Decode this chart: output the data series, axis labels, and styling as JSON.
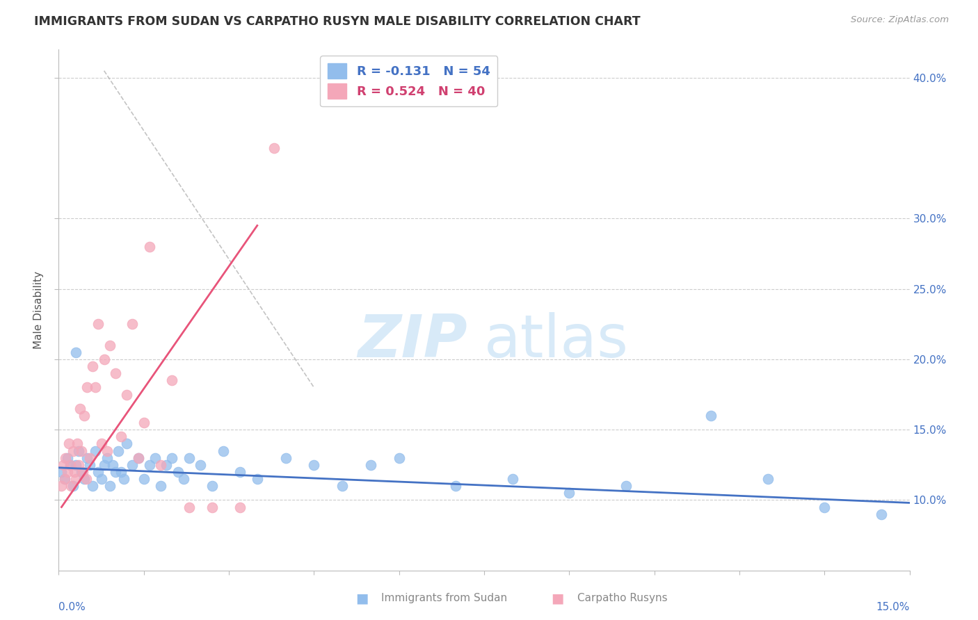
{
  "title": "IMMIGRANTS FROM SUDAN VS CARPATHO RUSYN MALE DISABILITY CORRELATION CHART",
  "source": "Source: ZipAtlas.com",
  "ylabel": "Male Disability",
  "xlim": [
    0.0,
    15.0
  ],
  "ylim": [
    5.0,
    42.0
  ],
  "ytick_values": [
    10.0,
    15.0,
    20.0,
    25.0,
    30.0,
    40.0
  ],
  "blue_color": "#92BDEC",
  "pink_color": "#F4A7B9",
  "blue_line_color": "#4472C4",
  "pink_line_color": "#E8547A",
  "watermark_color": "#D8EAF8",
  "blue_scatter_x": [
    0.05,
    0.1,
    0.15,
    0.2,
    0.25,
    0.3,
    0.35,
    0.4,
    0.45,
    0.5,
    0.55,
    0.6,
    0.65,
    0.7,
    0.75,
    0.8,
    0.85,
    0.9,
    0.95,
    1.0,
    1.05,
    1.1,
    1.15,
    1.2,
    1.3,
    1.4,
    1.5,
    1.6,
    1.7,
    1.8,
    1.9,
    2.0,
    2.1,
    2.2,
    2.3,
    2.5,
    2.7,
    2.9,
    3.2,
    3.5,
    4.0,
    4.5,
    5.0,
    5.5,
    6.0,
    7.0,
    8.0,
    9.0,
    10.0,
    11.5,
    12.5,
    13.5,
    14.5,
    0.3
  ],
  "blue_scatter_y": [
    12.0,
    11.5,
    13.0,
    12.5,
    11.0,
    12.5,
    13.5,
    12.0,
    11.5,
    13.0,
    12.5,
    11.0,
    13.5,
    12.0,
    11.5,
    12.5,
    13.0,
    11.0,
    12.5,
    12.0,
    13.5,
    12.0,
    11.5,
    14.0,
    12.5,
    13.0,
    11.5,
    12.5,
    13.0,
    11.0,
    12.5,
    13.0,
    12.0,
    11.5,
    13.0,
    12.5,
    11.0,
    13.5,
    12.0,
    11.5,
    13.0,
    12.5,
    11.0,
    12.5,
    13.0,
    11.0,
    11.5,
    10.5,
    11.0,
    16.0,
    11.5,
    9.5,
    9.0,
    20.5
  ],
  "pink_scatter_x": [
    0.05,
    0.08,
    0.1,
    0.12,
    0.15,
    0.18,
    0.2,
    0.22,
    0.25,
    0.28,
    0.3,
    0.33,
    0.35,
    0.38,
    0.4,
    0.43,
    0.45,
    0.48,
    0.5,
    0.55,
    0.6,
    0.65,
    0.7,
    0.75,
    0.8,
    0.85,
    0.9,
    1.0,
    1.1,
    1.2,
    1.3,
    1.4,
    1.6,
    1.8,
    2.0,
    2.3,
    2.7,
    3.2,
    3.8,
    1.5
  ],
  "pink_scatter_y": [
    11.0,
    12.5,
    11.5,
    13.0,
    12.0,
    14.0,
    12.5,
    11.0,
    13.5,
    12.0,
    11.5,
    14.0,
    12.5,
    16.5,
    13.5,
    12.0,
    16.0,
    11.5,
    18.0,
    13.0,
    19.5,
    18.0,
    22.5,
    14.0,
    20.0,
    13.5,
    21.0,
    19.0,
    14.5,
    17.5,
    22.5,
    13.0,
    28.0,
    12.5,
    18.5,
    9.5,
    9.5,
    9.5,
    35.0,
    15.5
  ],
  "blue_line_x0": 0.0,
  "blue_line_x1": 15.0,
  "blue_line_y0": 12.3,
  "blue_line_y1": 9.8,
  "pink_line_x0": 0.05,
  "pink_line_x1": 3.5,
  "pink_line_y0": 9.5,
  "pink_line_y1": 29.5,
  "dash_x0": 0.8,
  "dash_x1": 4.5,
  "dash_y0": 40.5,
  "dash_y1": 18.0
}
